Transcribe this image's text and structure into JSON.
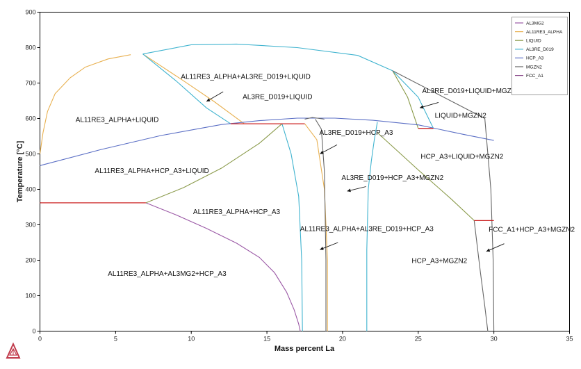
{
  "chart_data": {
    "type": "line",
    "title": "",
    "xlabel": "Mass percent La",
    "ylabel": "Temperature [°C]",
    "xlim": [
      0,
      35
    ],
    "ylim": [
      0,
      900
    ],
    "xticks": [
      0,
      5,
      10,
      15,
      20,
      25,
      30,
      35
    ],
    "yticks": [
      0,
      100,
      200,
      300,
      400,
      500,
      600,
      700,
      800,
      900
    ],
    "grid": false,
    "legend_position": "top-right",
    "series": [
      {
        "name": "AL3MG2",
        "color": "#9b59a6",
        "lines": [
          [
            [
              7,
              362
            ],
            [
              9,
              328
            ],
            [
              11,
              290
            ],
            [
              13,
              248
            ],
            [
              14.5,
              208
            ],
            [
              15.5,
              165
            ],
            [
              16.3,
              110
            ],
            [
              16.8,
              60
            ],
            [
              17.1,
              20
            ],
            [
              17.2,
              0
            ]
          ]
        ]
      },
      {
        "name": "AL11RE3_ALPHA",
        "color": "#e8b050",
        "lines": [
          [
            [
              0,
              500
            ],
            [
              0.2,
              560
            ],
            [
              0.5,
              620
            ],
            [
              1,
              670
            ],
            [
              2,
              715
            ],
            [
              3,
              745
            ],
            [
              4.5,
              768
            ],
            [
              6,
              780
            ]
          ],
          [
            [
              6.8,
              782
            ],
            [
              9.5,
              706
            ],
            [
              11.5,
              648
            ],
            [
              13.5,
              585
            ]
          ],
          [
            [
              17.5,
              585
            ],
            [
              18.3,
              540
            ],
            [
              18.8,
              400
            ],
            [
              19,
              200
            ],
            [
              19,
              0
            ]
          ]
        ]
      },
      {
        "name": "LIQUID",
        "color": "#8a9a4a",
        "lines": [
          [
            [
              7,
              362
            ],
            [
              9.5,
              405
            ],
            [
              12,
              460
            ],
            [
              14.5,
              530
            ],
            [
              16,
              585
            ]
          ],
          [
            [
              22.3,
              560
            ],
            [
              25,
              455
            ],
            [
              27.2,
              372
            ],
            [
              28.7,
              312
            ]
          ],
          [
            [
              23.3,
              735
            ],
            [
              24.3,
              660
            ],
            [
              25,
              572
            ]
          ]
        ]
      },
      {
        "name": "AL3RE_D019",
        "color": "#3fb3cf",
        "lines": [
          [
            [
              6.8,
              782
            ],
            [
              10,
              808
            ],
            [
              13,
              810
            ],
            [
              17,
              800
            ],
            [
              21,
              778
            ],
            [
              23.3,
              735
            ]
          ],
          [
            [
              6.8,
              782
            ],
            [
              9,
              706
            ],
            [
              11,
              630
            ],
            [
              12.6,
              585
            ]
          ],
          [
            [
              23.3,
              735
            ],
            [
              25,
              660
            ],
            [
              26,
              572
            ]
          ],
          [
            [
              16,
              585
            ],
            [
              16.6,
              500
            ],
            [
              17.1,
              380
            ],
            [
              17.3,
              200
            ],
            [
              17.35,
              0
            ]
          ],
          [
            [
              21.6,
              0
            ],
            [
              21.6,
              230
            ],
            [
              21.7,
              400
            ],
            [
              21.9,
              480
            ],
            [
              22.1,
              540
            ],
            [
              22.3,
              590
            ]
          ]
        ]
      },
      {
        "name": "HCP_A3",
        "color": "#5b6fc5",
        "lines": [
          [
            [
              0,
              467
            ],
            [
              4,
              512
            ],
            [
              8,
              552
            ],
            [
              12,
              583
            ],
            [
              14.5,
              594
            ],
            [
              17,
              601
            ],
            [
              19.5,
              601
            ],
            [
              22,
              595
            ],
            [
              25,
              582
            ],
            [
              28,
              555
            ],
            [
              30,
              538
            ]
          ]
        ]
      },
      {
        "name": "MGZN2",
        "color": "#666666",
        "lines": [
          [
            [
              18.2,
              598
            ],
            [
              18.6,
              570
            ],
            [
              18.8,
              450
            ],
            [
              18.9,
              200
            ],
            [
              18.9,
              0
            ]
          ],
          [
            [
              23.3,
              735
            ],
            [
              29.4,
              600
            ],
            [
              29.8,
              400
            ],
            [
              29.95,
              200
            ],
            [
              30,
              0
            ]
          ],
          [
            [
              28.7,
              312
            ],
            [
              29.1,
              170
            ],
            [
              29.4,
              70
            ],
            [
              29.6,
              0
            ]
          ],
          [
            [
              17.5,
              598
            ],
            [
              18,
              603
            ],
            [
              18.8,
              598
            ]
          ]
        ]
      },
      {
        "name": "FCC_A1",
        "color": "#8a4a8a",
        "lines": []
      }
    ],
    "tie_lines": {
      "color": "#cc2222",
      "lines": [
        [
          [
            0,
            362
          ],
          [
            7,
            362
          ]
        ],
        [
          [
            12.6,
            585
          ],
          [
            17.5,
            585
          ]
        ],
        [
          [
            25,
            572
          ],
          [
            26,
            572
          ]
        ],
        [
          [
            28.7,
            312
          ],
          [
            30,
            312
          ]
        ]
      ]
    },
    "annotations": [
      {
        "text": "AL11RE3_ALPHA+AL3RE_D019+LIQUID",
        "at": [
          13.6,
          712
        ],
        "arrow_to": [
          11,
          648
        ]
      },
      {
        "text": "AL3RE_D019+LIQUID",
        "at": [
          15.7,
          655
        ]
      },
      {
        "text": "AL11RE3_ALPHA+LIQUID",
        "at": [
          5.1,
          590
        ]
      },
      {
        "text": "AL3RE_D019+LIQUID+MGZN2",
        "at": [
          28.5,
          672
        ],
        "arrow_to": [
          25.1,
          630
        ]
      },
      {
        "text": "LIQUID+MGZN2",
        "at": [
          27.8,
          602
        ]
      },
      {
        "text": "AL3RE_D019+HCP_A3",
        "at": [
          20.9,
          554
        ],
        "arrow_to": [
          18.5,
          500
        ]
      },
      {
        "text": "AL11RE3_ALPHA+HCP_A3+LIQUID",
        "at": [
          7.4,
          446
        ]
      },
      {
        "text": "HCP_A3+LIQUID+MGZN2",
        "at": [
          27.9,
          486
        ]
      },
      {
        "text": "AL3RE_D019+HCP_A3+MGZN2",
        "at": [
          23.3,
          426
        ],
        "arrow_to": [
          20.3,
          395
        ]
      },
      {
        "text": "AL11RE3_ALPHA+HCP_A3",
        "at": [
          13,
          330
        ]
      },
      {
        "text": "AL11RE3_ALPHA+AL3RE_D019+HCP_A3",
        "at": [
          21.6,
          282
        ],
        "arrow_to": [
          18.5,
          230
        ]
      },
      {
        "text": "FCC_A1+HCP_A3+MGZN2",
        "at": [
          32.5,
          280
        ],
        "arrow_to": [
          29.5,
          225
        ]
      },
      {
        "text": "HCP_A3+MGZN2",
        "at": [
          26.4,
          192
        ]
      },
      {
        "text": "AL11RE3_ALPHA+AL3MG2+HCP_A3",
        "at": [
          8.4,
          156
        ]
      }
    ]
  }
}
